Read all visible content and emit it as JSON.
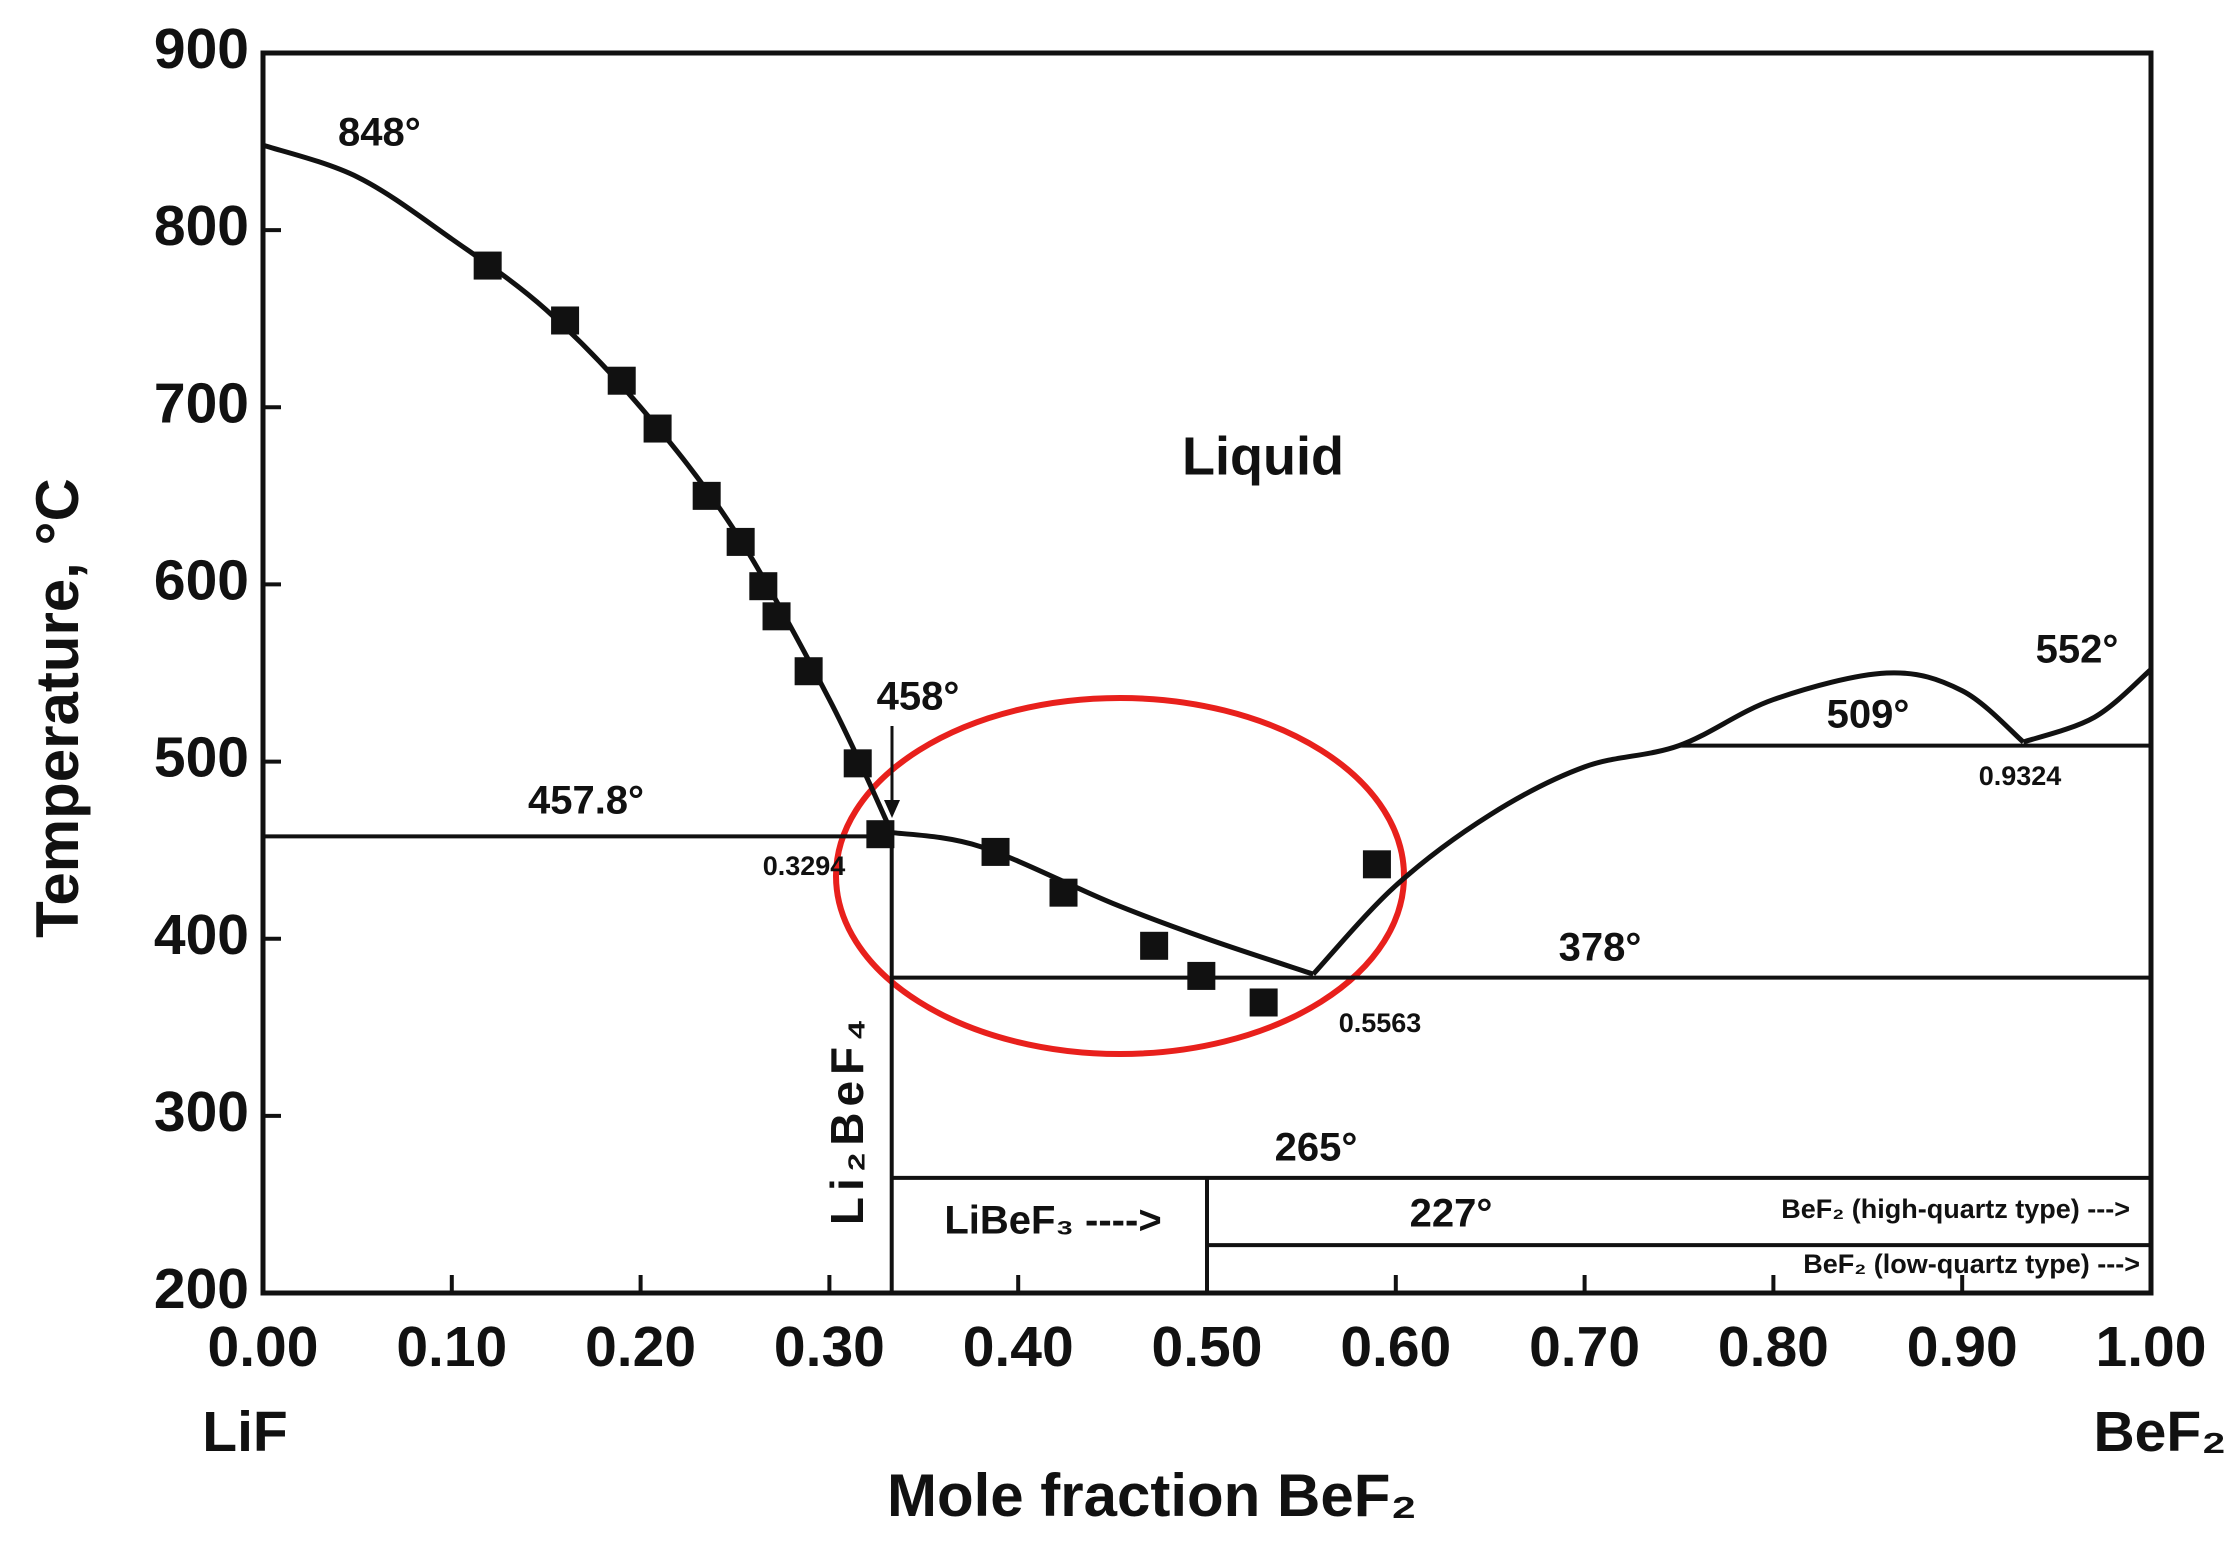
{
  "chart_data": {
    "type": "scatter",
    "xlabel": "Mole fraction BeF₂",
    "ylabel": "Temperature, °C",
    "x_end_labels": [
      "LiF",
      "BeF₂"
    ],
    "xlim": [
      0,
      1
    ],
    "ylim": [
      200,
      900
    ],
    "xticks": [
      {
        "value": 0,
        "label": "0.00"
      },
      {
        "value": 0.1,
        "label": "0.10"
      },
      {
        "value": 0.2,
        "label": "0.20"
      },
      {
        "value": 0.3,
        "label": "0.30"
      },
      {
        "value": 0.4,
        "label": "0.40"
      },
      {
        "value": 0.5,
        "label": "0.50"
      },
      {
        "value": 0.6,
        "label": "0.60"
      },
      {
        "value": 0.7,
        "label": "0.70"
      },
      {
        "value": 0.8,
        "label": "0.80"
      },
      {
        "value": 0.9,
        "label": "0.90"
      },
      {
        "value": 1,
        "label": "1.00"
      }
    ],
    "yticks": [
      200,
      300,
      400,
      500,
      600,
      700,
      800,
      900
    ],
    "series": [
      {
        "color": "#111111",
        "x": [
          0.119,
          0.16,
          0.19,
          0.209,
          0.235,
          0.253,
          0.265,
          0.272,
          0.289,
          0.315,
          0.327,
          0.388,
          0.424,
          0.472,
          0.497,
          0.53,
          0.59
        ],
        "values": [
          780,
          749,
          715,
          688,
          650,
          624,
          599,
          582,
          551,
          499,
          459,
          449,
          426,
          396,
          379,
          364,
          442
        ]
      }
    ],
    "curves": [
      {
        "x": [
          0,
          0.05,
          0.1,
          0.15,
          0.2,
          0.25,
          0.3,
          0.333
        ],
        "y": [
          848,
          830,
          795,
          755,
          700,
          630,
          535,
          460
        ]
      },
      {
        "x": [
          0.333,
          0.38,
          0.45,
          0.5,
          0.5563
        ],
        "y": [
          460,
          452,
          420,
          400,
          380
        ]
      },
      {
        "x": [
          0.5563,
          0.6,
          0.65,
          0.7,
          0.75,
          0.8,
          0.86,
          0.9,
          0.9324
        ],
        "y": [
          380,
          430,
          470,
          497,
          509,
          535,
          550,
          540,
          511
        ]
      },
      {
        "x": [
          0.9324,
          0.97,
          1
        ],
        "y": [
          511,
          525,
          552
        ]
      }
    ],
    "segments": [
      {
        "x": [
          0,
          0.333
        ],
        "y": [
          457.8,
          457.8
        ]
      },
      {
        "x": [
          0.333,
          1
        ],
        "y": [
          378,
          378
        ]
      },
      {
        "x": [
          0.333,
          1
        ],
        "y": [
          265,
          265
        ]
      },
      {
        "x": [
          0.5,
          1
        ],
        "y": [
          227,
          227
        ]
      },
      {
        "x": [
          0.75,
          1
        ],
        "y": [
          509,
          509
        ]
      },
      {
        "x": [
          0.333,
          0.333
        ],
        "y": [
          200,
          458
        ]
      },
      {
        "x": [
          0.5,
          0.5
        ],
        "y": [
          200,
          265
        ]
      }
    ],
    "annotations": [
      "848°",
      "458°",
      "457.8°",
      "0.3294",
      "378°",
      "0.5563",
      "265°",
      "227°",
      "509°",
      "0.9324",
      "552°",
      "Liquid",
      "LiBeF₃ ---->",
      "Li₂BeF₄",
      "BeF₂ (high-quartz type) --->",
      "BeF₂ (low-quartz type) --->"
    ]
  }
}
